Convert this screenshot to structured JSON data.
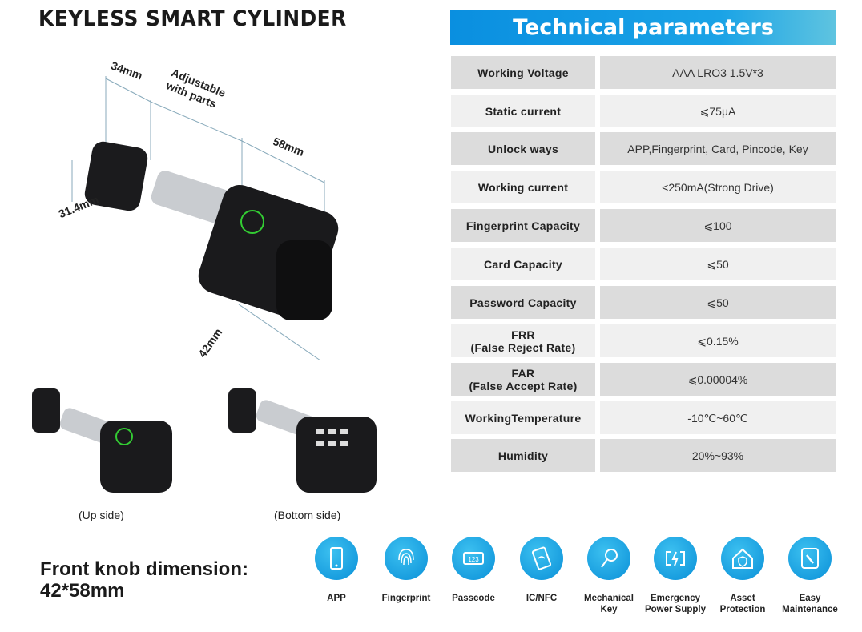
{
  "title": "KEYLESS SMART CYLINDER",
  "dimensions": {
    "d34": "34mm",
    "adjustable": "Adjustable with parts",
    "d58": "58mm",
    "d314": "31.4mm",
    "d42": "42mm"
  },
  "captions": {
    "up": "(Up side)",
    "bottom": "(Bottom side)"
  },
  "front_knob": {
    "line1": "Front knob dimension:",
    "line2": "42*58mm"
  },
  "tech": {
    "title": "Technical parameters",
    "rows": [
      {
        "k": "Working Voltage",
        "v": "AAA LRO3 1.5V*3"
      },
      {
        "k": "Static current",
        "v": "⩽75μA"
      },
      {
        "k": "Unlock ways",
        "v": "APP,Fingerprint, Card, Pincode, Key"
      },
      {
        "k": "Working current",
        "v": "<250mA(Strong Drive)"
      },
      {
        "k": "Fingerprint Capacity",
        "v": "⩽100"
      },
      {
        "k": "Card Capacity",
        "v": "⩽50"
      },
      {
        "k": "Password Capacity",
        "v": "⩽50"
      },
      {
        "k": "FRR\n(False Reject Rate)",
        "v": "⩽0.15%"
      },
      {
        "k": "FAR\n(False Accept Rate)",
        "v": "⩽0.00004%"
      },
      {
        "k": "WorkingTemperature",
        "v": "-10℃~60℃"
      },
      {
        "k": "Humidity",
        "v": "20%~93%"
      }
    ]
  },
  "features": [
    {
      "label": "APP",
      "icon": "phone-icon"
    },
    {
      "label": "Fingerprint",
      "icon": "fingerprint-icon"
    },
    {
      "label": "Passcode",
      "icon": "keypad-icon"
    },
    {
      "label": "IC/NFC",
      "icon": "nfc-card-icon"
    },
    {
      "label": "Mechanical Key",
      "icon": "key-icon"
    },
    {
      "label": "Emergency Power Supply",
      "icon": "battery-icon"
    },
    {
      "label": "Asset Protection",
      "icon": "house-shield-icon"
    },
    {
      "label": "Easy Maintenance",
      "icon": "wrench-icon"
    }
  ],
  "colors": {
    "accent": "#0a8fe0",
    "row_dark": "#dcdcdc",
    "row_light": "#f0f0f0"
  }
}
